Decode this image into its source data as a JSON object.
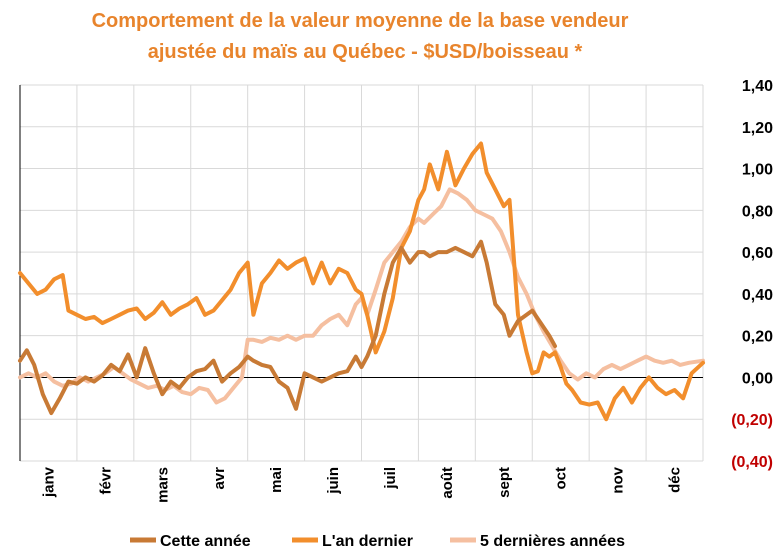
{
  "chart_data": {
    "type": "line",
    "title": "Comportement de la valeur moyenne de la base vendeur",
    "subtitle": "ajustée du maïs au Québec - $USD/boisseau *",
    "y_axis_position": "right",
    "ylim": [
      -0.4,
      1.4
    ],
    "y_ticks": [
      {
        "value": 1.4,
        "label": "1,40",
        "color": "#000000"
      },
      {
        "value": 1.2,
        "label": "1,20",
        "color": "#000000"
      },
      {
        "value": 1.0,
        "label": "1,00",
        "color": "#000000"
      },
      {
        "value": 0.8,
        "label": "0,80",
        "color": "#000000"
      },
      {
        "value": 0.6,
        "label": "0,60",
        "color": "#000000"
      },
      {
        "value": 0.4,
        "label": "0,40",
        "color": "#000000"
      },
      {
        "value": 0.2,
        "label": "0,20",
        "color": "#000000"
      },
      {
        "value": 0.0,
        "label": "0,00",
        "color": "#000000"
      },
      {
        "value": -0.2,
        "label": "(0,20)",
        "color": "#C00000"
      },
      {
        "value": -0.4,
        "label": "(0,40)",
        "color": "#C00000"
      }
    ],
    "categories": [
      "janv",
      "févr",
      "mars",
      "avr",
      "mai",
      "juin",
      "juil",
      "août",
      "sept",
      "oct",
      "nov",
      "déc"
    ],
    "grid": true,
    "legend_position": "bottom",
    "series": [
      {
        "name": "Cette année",
        "color": "#C87A35",
        "points": [
          [
            0.0,
            0.08
          ],
          [
            0.12,
            0.13
          ],
          [
            0.25,
            0.06
          ],
          [
            0.4,
            -0.08
          ],
          [
            0.55,
            -0.17
          ],
          [
            0.7,
            -0.1
          ],
          [
            0.85,
            -0.02
          ],
          [
            1.0,
            -0.03
          ],
          [
            1.15,
            0.0
          ],
          [
            1.3,
            -0.02
          ],
          [
            1.45,
            0.01
          ],
          [
            1.6,
            0.06
          ],
          [
            1.75,
            0.03
          ],
          [
            1.9,
            0.11
          ],
          [
            2.05,
            0.0
          ],
          [
            2.2,
            0.14
          ],
          [
            2.35,
            0.02
          ],
          [
            2.5,
            -0.08
          ],
          [
            2.65,
            -0.02
          ],
          [
            2.8,
            -0.05
          ],
          [
            2.95,
            0.0
          ],
          [
            3.1,
            0.03
          ],
          [
            3.25,
            0.04
          ],
          [
            3.4,
            0.08
          ],
          [
            3.55,
            -0.02
          ],
          [
            3.7,
            0.02
          ],
          [
            3.85,
            0.05
          ],
          [
            4.0,
            0.1
          ],
          [
            4.1,
            0.08
          ],
          [
            4.25,
            0.06
          ],
          [
            4.4,
            0.05
          ],
          [
            4.55,
            -0.02
          ],
          [
            4.7,
            -0.05
          ],
          [
            4.85,
            -0.15
          ],
          [
            5.0,
            0.02
          ],
          [
            5.15,
            0.0
          ],
          [
            5.3,
            -0.02
          ],
          [
            5.45,
            0.0
          ],
          [
            5.6,
            0.02
          ],
          [
            5.75,
            0.03
          ],
          [
            5.9,
            0.1
          ],
          [
            6.0,
            0.05
          ],
          [
            6.1,
            0.1
          ],
          [
            6.25,
            0.2
          ],
          [
            6.4,
            0.4
          ],
          [
            6.55,
            0.55
          ],
          [
            6.7,
            0.62
          ],
          [
            6.85,
            0.55
          ],
          [
            7.0,
            0.6
          ],
          [
            7.1,
            0.6
          ],
          [
            7.2,
            0.58
          ],
          [
            7.35,
            0.6
          ],
          [
            7.5,
            0.6
          ],
          [
            7.65,
            0.62
          ],
          [
            7.8,
            0.6
          ],
          [
            7.95,
            0.58
          ],
          [
            8.1,
            0.65
          ],
          [
            8.2,
            0.55
          ],
          [
            8.35,
            0.35
          ],
          [
            8.5,
            0.3
          ],
          [
            8.6,
            0.2
          ],
          [
            8.75,
            0.27
          ],
          [
            8.9,
            0.3
          ],
          [
            9.0,
            0.32
          ],
          [
            9.15,
            0.26
          ],
          [
            9.3,
            0.2
          ],
          [
            9.4,
            0.15
          ]
        ]
      },
      {
        "name": "L'an dernier",
        "color": "#F28E2C",
        "points": [
          [
            0.0,
            0.5
          ],
          [
            0.15,
            0.45
          ],
          [
            0.3,
            0.4
          ],
          [
            0.45,
            0.42
          ],
          [
            0.6,
            0.47
          ],
          [
            0.75,
            0.49
          ],
          [
            0.85,
            0.32
          ],
          [
            1.0,
            0.3
          ],
          [
            1.15,
            0.28
          ],
          [
            1.3,
            0.29
          ],
          [
            1.45,
            0.26
          ],
          [
            1.6,
            0.28
          ],
          [
            1.75,
            0.3
          ],
          [
            1.9,
            0.32
          ],
          [
            2.05,
            0.33
          ],
          [
            2.2,
            0.28
          ],
          [
            2.35,
            0.31
          ],
          [
            2.5,
            0.36
          ],
          [
            2.65,
            0.3
          ],
          [
            2.8,
            0.33
          ],
          [
            2.95,
            0.35
          ],
          [
            3.1,
            0.38
          ],
          [
            3.25,
            0.3
          ],
          [
            3.4,
            0.32
          ],
          [
            3.55,
            0.37
          ],
          [
            3.7,
            0.42
          ],
          [
            3.85,
            0.5
          ],
          [
            4.0,
            0.55
          ],
          [
            4.1,
            0.3
          ],
          [
            4.25,
            0.45
          ],
          [
            4.4,
            0.5
          ],
          [
            4.55,
            0.56
          ],
          [
            4.7,
            0.52
          ],
          [
            4.85,
            0.55
          ],
          [
            5.0,
            0.57
          ],
          [
            5.15,
            0.45
          ],
          [
            5.3,
            0.55
          ],
          [
            5.45,
            0.45
          ],
          [
            5.6,
            0.52
          ],
          [
            5.75,
            0.5
          ],
          [
            5.9,
            0.42
          ],
          [
            6.0,
            0.4
          ],
          [
            6.1,
            0.3
          ],
          [
            6.25,
            0.12
          ],
          [
            6.4,
            0.22
          ],
          [
            6.55,
            0.38
          ],
          [
            6.7,
            0.62
          ],
          [
            6.85,
            0.7
          ],
          [
            7.0,
            0.85
          ],
          [
            7.1,
            0.9
          ],
          [
            7.2,
            1.02
          ],
          [
            7.35,
            0.9
          ],
          [
            7.5,
            1.08
          ],
          [
            7.65,
            0.92
          ],
          [
            7.8,
            1.0
          ],
          [
            7.95,
            1.07
          ],
          [
            8.1,
            1.12
          ],
          [
            8.2,
            0.98
          ],
          [
            8.35,
            0.9
          ],
          [
            8.5,
            0.82
          ],
          [
            8.6,
            0.85
          ],
          [
            8.75,
            0.3
          ],
          [
            8.9,
            0.12
          ],
          [
            9.0,
            0.02
          ],
          [
            9.1,
            0.03
          ],
          [
            9.2,
            0.12
          ],
          [
            9.3,
            0.1
          ],
          [
            9.4,
            0.12
          ],
          [
            9.5,
            0.05
          ],
          [
            9.6,
            -0.03
          ],
          [
            9.7,
            -0.06
          ],
          [
            9.85,
            -0.12
          ],
          [
            10.0,
            -0.13
          ],
          [
            10.15,
            -0.12
          ],
          [
            10.3,
            -0.2
          ],
          [
            10.45,
            -0.1
          ],
          [
            10.6,
            -0.05
          ],
          [
            10.75,
            -0.12
          ],
          [
            10.9,
            -0.05
          ],
          [
            11.05,
            0.0
          ],
          [
            11.2,
            -0.05
          ],
          [
            11.35,
            -0.08
          ],
          [
            11.5,
            -0.06
          ],
          [
            11.65,
            -0.1
          ],
          [
            11.8,
            0.02
          ],
          [
            12.0,
            0.07
          ]
        ]
      },
      {
        "name": "5 dernières années",
        "color": "#F5BFA0",
        "points": [
          [
            0.0,
            0.0
          ],
          [
            0.15,
            0.02
          ],
          [
            0.3,
            0.0
          ],
          [
            0.45,
            0.02
          ],
          [
            0.6,
            -0.02
          ],
          [
            0.75,
            -0.04
          ],
          [
            0.9,
            -0.03
          ],
          [
            1.05,
            0.0
          ],
          [
            1.2,
            -0.02
          ],
          [
            1.35,
            0.0
          ],
          [
            1.5,
            0.02
          ],
          [
            1.65,
            0.05
          ],
          [
            1.8,
            0.02
          ],
          [
            1.95,
            -0.01
          ],
          [
            2.1,
            -0.03
          ],
          [
            2.25,
            -0.05
          ],
          [
            2.4,
            -0.04
          ],
          [
            2.55,
            -0.06
          ],
          [
            2.7,
            -0.04
          ],
          [
            2.85,
            -0.07
          ],
          [
            3.0,
            -0.08
          ],
          [
            3.15,
            -0.05
          ],
          [
            3.3,
            -0.06
          ],
          [
            3.45,
            -0.12
          ],
          [
            3.6,
            -0.1
          ],
          [
            3.75,
            -0.05
          ],
          [
            3.9,
            0.0
          ],
          [
            4.0,
            0.18
          ],
          [
            4.1,
            0.18
          ],
          [
            4.25,
            0.17
          ],
          [
            4.4,
            0.19
          ],
          [
            4.55,
            0.18
          ],
          [
            4.7,
            0.2
          ],
          [
            4.85,
            0.18
          ],
          [
            5.0,
            0.2
          ],
          [
            5.15,
            0.2
          ],
          [
            5.3,
            0.25
          ],
          [
            5.45,
            0.28
          ],
          [
            5.6,
            0.3
          ],
          [
            5.75,
            0.25
          ],
          [
            5.9,
            0.35
          ],
          [
            6.0,
            0.38
          ],
          [
            6.1,
            0.3
          ],
          [
            6.25,
            0.42
          ],
          [
            6.4,
            0.55
          ],
          [
            6.55,
            0.6
          ],
          [
            6.7,
            0.65
          ],
          [
            6.85,
            0.72
          ],
          [
            7.0,
            0.76
          ],
          [
            7.1,
            0.74
          ],
          [
            7.25,
            0.78
          ],
          [
            7.4,
            0.82
          ],
          [
            7.55,
            0.9
          ],
          [
            7.7,
            0.88
          ],
          [
            7.85,
            0.85
          ],
          [
            8.0,
            0.8
          ],
          [
            8.15,
            0.78
          ],
          [
            8.3,
            0.76
          ],
          [
            8.45,
            0.7
          ],
          [
            8.6,
            0.6
          ],
          [
            8.75,
            0.48
          ],
          [
            8.9,
            0.4
          ],
          [
            9.05,
            0.3
          ],
          [
            9.2,
            0.22
          ],
          [
            9.35,
            0.15
          ],
          [
            9.5,
            0.08
          ],
          [
            9.65,
            0.02
          ],
          [
            9.8,
            -0.01
          ],
          [
            9.95,
            0.02
          ],
          [
            10.1,
            0.0
          ],
          [
            10.25,
            0.04
          ],
          [
            10.4,
            0.06
          ],
          [
            10.55,
            0.04
          ],
          [
            10.7,
            0.06
          ],
          [
            10.85,
            0.08
          ],
          [
            11.0,
            0.1
          ],
          [
            11.15,
            0.08
          ],
          [
            11.3,
            0.07
          ],
          [
            11.45,
            0.08
          ],
          [
            11.6,
            0.06
          ],
          [
            11.75,
            0.07
          ],
          [
            12.0,
            0.08
          ]
        ]
      }
    ]
  }
}
